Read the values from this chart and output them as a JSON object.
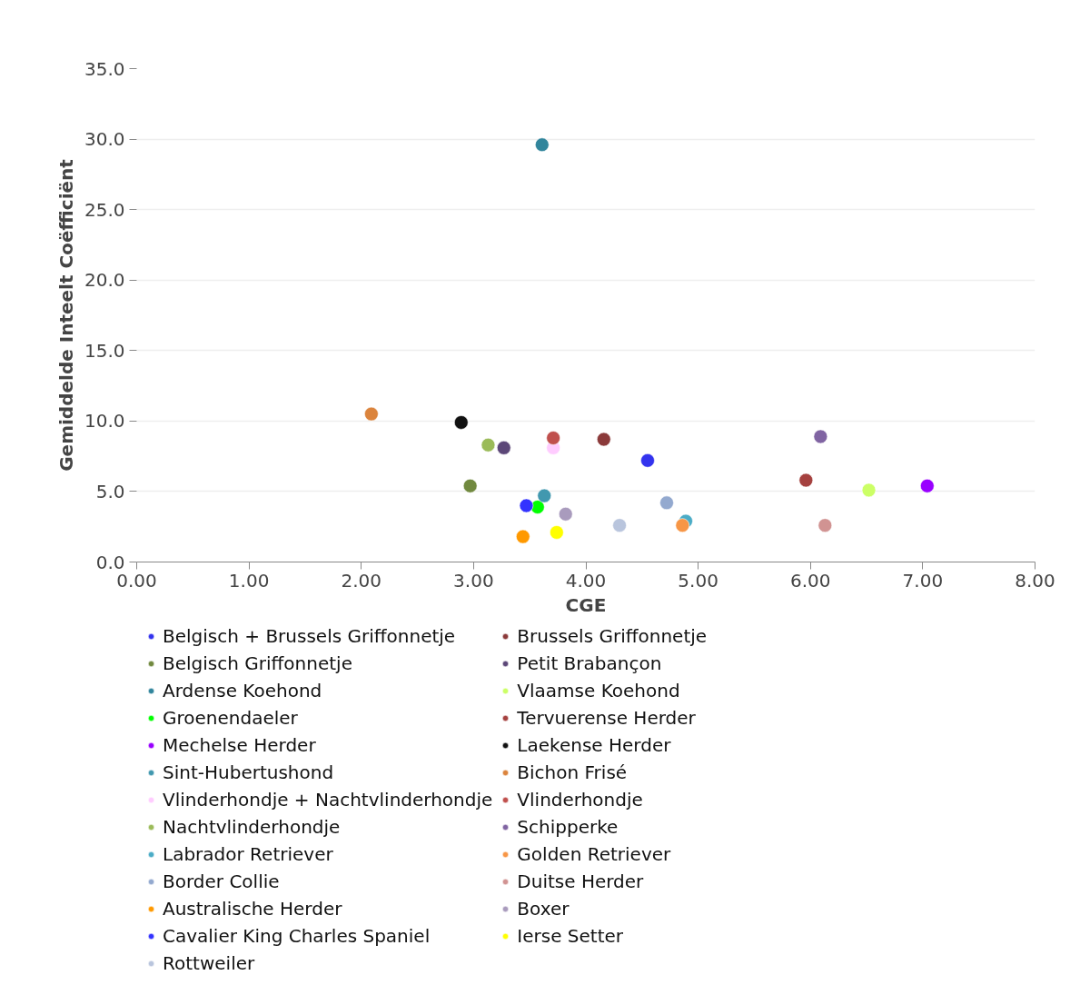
{
  "chart_data": {
    "type": "scatter",
    "xlabel": "CGE",
    "ylabel": "Gemiddelde Inteelt Coëfficiënt",
    "xlim": [
      0,
      8
    ],
    "ylim": [
      0,
      35
    ],
    "xticks": [
      {
        "value": 0,
        "label": "0.00"
      },
      {
        "value": 1,
        "label": "1.00"
      },
      {
        "value": 2,
        "label": "2.00"
      },
      {
        "value": 3,
        "label": "3.00"
      },
      {
        "value": 4,
        "label": "4.00"
      },
      {
        "value": 5,
        "label": "5.00"
      },
      {
        "value": 6,
        "label": "6.00"
      },
      {
        "value": 7,
        "label": "7.00"
      },
      {
        "value": 8,
        "label": "8.00"
      }
    ],
    "yticks": [
      {
        "value": 0,
        "label": "0.0"
      },
      {
        "value": 5,
        "label": "5.0"
      },
      {
        "value": 10,
        "label": "10.0"
      },
      {
        "value": 15,
        "label": "15.0"
      },
      {
        "value": 20,
        "label": "20.0"
      },
      {
        "value": 25,
        "label": "25.0"
      },
      {
        "value": 30,
        "label": "30.0"
      },
      {
        "value": 35,
        "label": "35.0"
      }
    ],
    "grid": "y",
    "legend": "bottom",
    "marker": "circle",
    "series": [
      {
        "name": "Belgisch + Brussels Griffonnetje",
        "color": "#3333ee",
        "x": [
          4.55
        ],
        "values": [
          7.2
        ]
      },
      {
        "name": "Brussels Griffonnetje",
        "color": "#8b3a3a",
        "x": [
          4.16
        ],
        "values": [
          8.7
        ]
      },
      {
        "name": "Belgisch Griffonnetje",
        "color": "#71893f",
        "x": [
          2.97
        ],
        "values": [
          5.4
        ]
      },
      {
        "name": "Petit Brabançon",
        "color": "#5c4778",
        "x": [
          3.27
        ],
        "values": [
          8.1
        ]
      },
      {
        "name": "Ardense Koehond",
        "color": "#31859c",
        "x": [
          3.61
        ],
        "values": [
          29.6
        ]
      },
      {
        "name": "Vlaamse Koehond",
        "color": "#ccff66",
        "x": [
          6.52
        ],
        "values": [
          5.1
        ]
      },
      {
        "name": "Groenendaeler",
        "color": "#00ff00",
        "x": [
          3.57
        ],
        "values": [
          3.9
        ]
      },
      {
        "name": "Tervuerense Herder",
        "color": "#a5413f",
        "x": [
          5.96
        ],
        "values": [
          5.8
        ]
      },
      {
        "name": "Mechelse Herder",
        "color": "#9900ff",
        "x": [
          7.04
        ],
        "values": [
          5.4
        ]
      },
      {
        "name": "Laekense Herder",
        "color": "#111111",
        "x": [
          2.89
        ],
        "values": [
          9.9
        ]
      },
      {
        "name": "Sint-Hubertushond",
        "color": "#4198af",
        "x": [
          3.63
        ],
        "values": [
          4.7
        ]
      },
      {
        "name": "Bichon Frisé",
        "color": "#db843d",
        "x": [
          2.09
        ],
        "values": [
          10.5
        ]
      },
      {
        "name": "Vlinderhondje + Nachtvlinderhondje",
        "color": "#ffccff",
        "x": [
          3.71
        ],
        "values": [
          8.1
        ]
      },
      {
        "name": "Vlinderhondje",
        "color": "#c0504d",
        "x": [
          3.71
        ],
        "values": [
          8.8
        ]
      },
      {
        "name": "Nachtvlinderhondje",
        "color": "#9bbb59",
        "x": [
          3.13
        ],
        "values": [
          8.3
        ]
      },
      {
        "name": "Schipperke",
        "color": "#8064a2",
        "x": [
          6.09
        ],
        "values": [
          8.9
        ]
      },
      {
        "name": "Labrador Retriever",
        "color": "#4bacc6",
        "x": [
          4.89
        ],
        "values": [
          2.9
        ]
      },
      {
        "name": "Golden Retriever",
        "color": "#f79646",
        "x": [
          4.86
        ],
        "values": [
          2.6
        ]
      },
      {
        "name": "Border Collie",
        "color": "#93a9cf",
        "x": [
          4.72
        ],
        "values": [
          4.2
        ]
      },
      {
        "name": "Duitse Herder",
        "color": "#d19392",
        "x": [
          6.13
        ],
        "values": [
          2.6
        ]
      },
      {
        "name": "Australische Herder",
        "color": "#ff9900",
        "x": [
          3.44
        ],
        "values": [
          1.8
        ]
      },
      {
        "name": "Boxer",
        "color": "#a99bbd",
        "x": [
          3.82
        ],
        "values": [
          3.4
        ]
      },
      {
        "name": "Cavalier King Charles Spaniel",
        "color": "#3333ff",
        "x": [
          3.47
        ],
        "values": [
          4.0
        ]
      },
      {
        "name": "Ierse Setter",
        "color": "#ffff00",
        "x": [
          3.74
        ],
        "values": [
          2.1
        ]
      },
      {
        "name": "Rottweiler",
        "color": "#b9c5dd",
        "x": [
          4.3
        ],
        "values": [
          2.6
        ]
      }
    ]
  }
}
